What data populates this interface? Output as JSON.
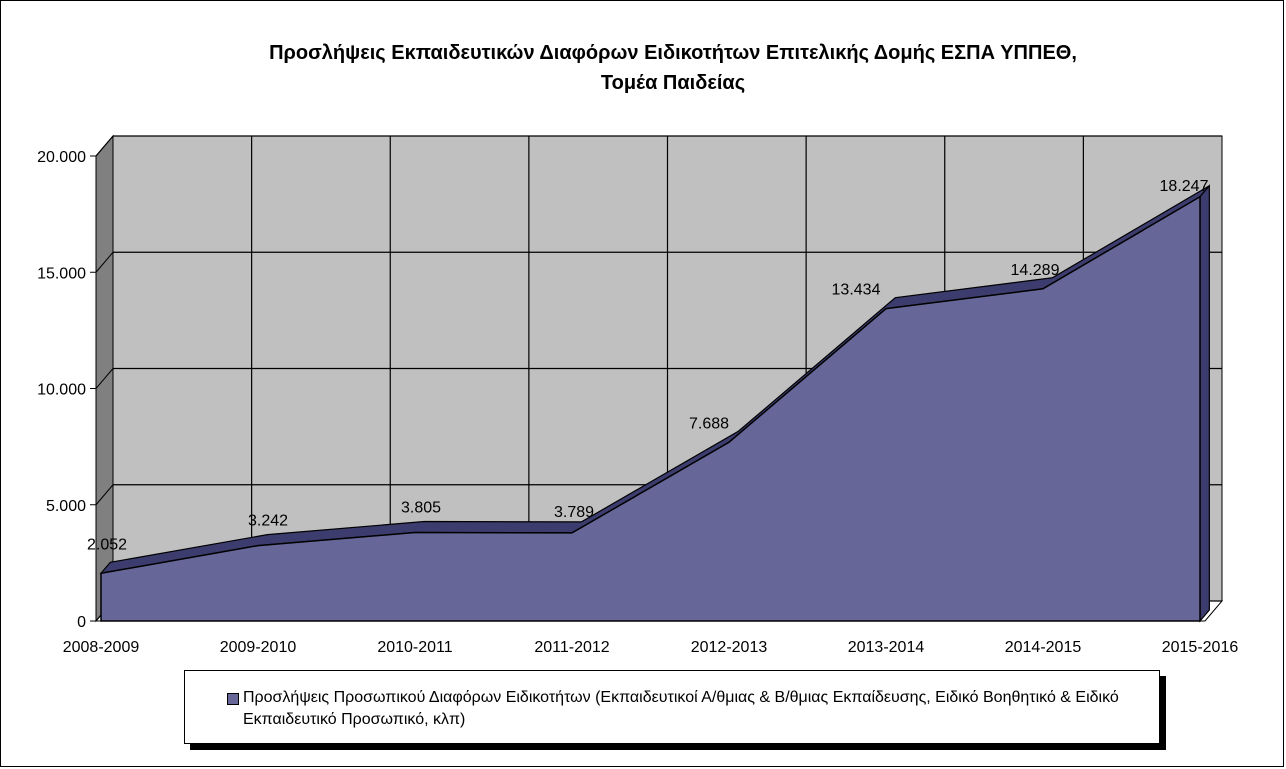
{
  "colors": {
    "area_fill": "#666699",
    "area_top": "#3c3c6e",
    "wall": "#c0c0c0",
    "wall_side": "#808080",
    "gridline": "#000000"
  },
  "chart_data": {
    "type": "area",
    "title_lines": [
      "Προσλήψεις  Εκπαιδευτικών  Διαφόρων  Ειδικοτήτων  Επιτελικής  Δομής  ΕΣΠΑ  ΥΠΠΕΘ,",
      "Τομέα Παιδείας"
    ],
    "categories": [
      "2008-2009",
      "2009-2010",
      "2010-2011",
      "2011-2012",
      "2012-2013",
      "2013-2014",
      "2014-2015",
      "2015-2016"
    ],
    "series": [
      {
        "name": "Προσλήψεις  Προσωπικού Διαφόρων Ειδικοτήτων (Εκπαιδευτικοί Α/θμιας & Β/θμιας Εκπαίδευσης, Ειδικό Βοηθητικό & Ειδικό Εκπαιδευτικό Προσωπικό, κλπ)",
        "values": [
          2052,
          3242,
          3805,
          3789,
          7688,
          13434,
          14289,
          18247
        ]
      }
    ],
    "data_labels": [
      "2.052",
      "3.242",
      "3.805",
      "3.789",
      "7.688",
      "13.434",
      "14.289",
      "18.247"
    ],
    "y_ticks": [
      0,
      5000,
      10000,
      15000,
      20000
    ],
    "y_tick_labels": [
      "0",
      "5.000",
      "10.000",
      "15.000",
      "20.000"
    ],
    "ylim": [
      0,
      20000
    ],
    "grid": true,
    "legend_position": "bottom",
    "three_d": true
  }
}
